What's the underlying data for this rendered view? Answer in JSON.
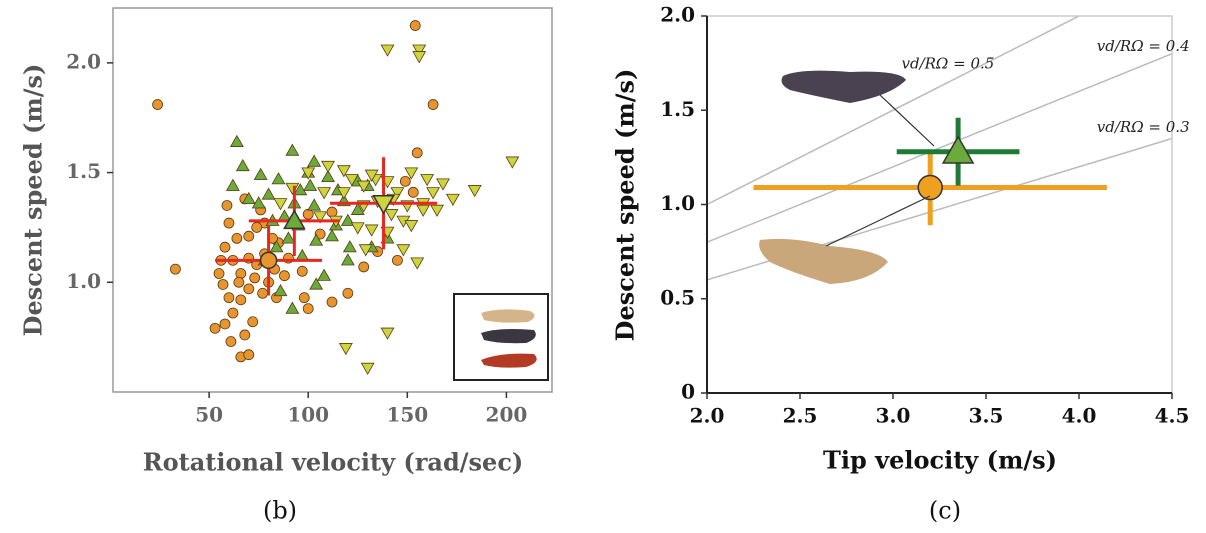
{
  "chart_data": [
    {
      "type": "scatter",
      "subplot_label": "(b)",
      "x_label": "Rotational velocity (rad/sec)",
      "y_label": "Descent speed (m/s)",
      "xlim": [
        1.5,
        223
      ],
      "ylim": [
        0.5,
        2.25
      ],
      "xticks": [
        50,
        100,
        150,
        200
      ],
      "yticks": [
        {
          "value": 1.0,
          "label": "1.0"
        },
        {
          "value": 1.5,
          "label": "1.5"
        },
        {
          "value": 2.0,
          "label": "2.0"
        }
      ],
      "series": [
        {
          "color": "#e8952f",
          "marker": "circle",
          "x": [
            24,
            33,
            154,
            163,
            155,
            149,
            153,
            145,
            128,
            120,
            112,
            100,
            98,
            97,
            88,
            85,
            78,
            74,
            70,
            64,
            59,
            60,
            56,
            55,
            57,
            60,
            62,
            58,
            53,
            61,
            66,
            70,
            68,
            72,
            66,
            70,
            73,
            66,
            62,
            70,
            78,
            74,
            80,
            84,
            90,
            82,
            76,
            68,
            100,
            106,
            135,
            112,
            65,
            77,
            83,
            58
          ],
          "y": [
            1.81,
            1.06,
            2.17,
            1.81,
            1.59,
            1.46,
            1.41,
            1.1,
            1.07,
            0.95,
            0.91,
            0.88,
            0.93,
            1.05,
            1.03,
            1.18,
            1.27,
            1.25,
            1.21,
            1.2,
            1.35,
            1.27,
            1.1,
            1.04,
            0.99,
            0.93,
            0.86,
            0.81,
            0.79,
            0.73,
            0.66,
            0.67,
            0.76,
            0.82,
            0.92,
            0.97,
            1.02,
            1.04,
            1.1,
            1.11,
            1.13,
            1.08,
            1.0,
            0.93,
            1.11,
            1.2,
            1.33,
            1.38,
            1.31,
            1.22,
            1.14,
            1.32,
            1.0,
            0.95,
            1.06,
            1.16
          ]
        },
        {
          "color": "#6aab3c",
          "marker": "triangle-up",
          "x": [
            64,
            92,
            100,
            103,
            115,
            85,
            80,
            75,
            70,
            67,
            62,
            76,
            88,
            95,
            90,
            84,
            97,
            104,
            112,
            120,
            118,
            125,
            130,
            103,
            96,
            82,
            86,
            104,
            108,
            120,
            132,
            140,
            110,
            101,
            93,
            78,
            92,
            121,
            114,
            125
          ],
          "y": [
            1.64,
            1.6,
            1.5,
            1.55,
            1.42,
            1.47,
            1.4,
            1.36,
            1.38,
            1.53,
            1.44,
            1.49,
            1.3,
            1.26,
            1.2,
            1.16,
            1.12,
            1.19,
            1.21,
            1.28,
            1.37,
            1.33,
            1.44,
            1.35,
            1.42,
            1.28,
            0.96,
            0.99,
            1.03,
            1.1,
            1.16,
            1.2,
            1.48,
            1.44,
            1.36,
            1.1,
            0.88,
            1.16,
            1.26,
            1.46
          ]
        },
        {
          "color": "#cdd43c",
          "marker": "triangle-down",
          "x": [
            140,
            156,
            156,
            203,
            184,
            173,
            163,
            165,
            158,
            150,
            145,
            140,
            134,
            128,
            122,
            118,
            128,
            135,
            142,
            148,
            152,
            140,
            132,
            125,
            114,
            106,
            108,
            118,
            110,
            100,
            92,
            86,
            148,
            155,
            140,
            119,
            130,
            143,
            160,
            168,
            152,
            158,
            129,
            132
          ],
          "y": [
            2.06,
            2.06,
            2.03,
            1.55,
            1.42,
            1.38,
            1.41,
            1.33,
            1.36,
            1.35,
            1.41,
            1.46,
            1.47,
            1.44,
            1.47,
            1.41,
            1.35,
            1.37,
            1.31,
            1.28,
            1.26,
            1.23,
            1.24,
            1.25,
            1.28,
            1.3,
            1.41,
            1.51,
            1.53,
            1.5,
            1.43,
            1.36,
            1.15,
            1.09,
            0.77,
            0.7,
            0.61,
            1.38,
            1.47,
            1.45,
            1.5,
            1.33,
            1.15,
            1.49
          ]
        }
      ],
      "means": [
        {
          "x": 80,
          "y": 1.1,
          "xerr": 27,
          "yerr": 0.16,
          "color": "#e8952f",
          "bar_color": "#e8281e",
          "marker": "circle"
        },
        {
          "x": 93,
          "y": 1.28,
          "xerr": 23,
          "yerr": 0.16,
          "color": "#6aab3c",
          "bar_color": "#e8281e",
          "marker": "triangle-up"
        },
        {
          "x": 138,
          "y": 1.36,
          "xerr": 27,
          "yerr": 0.21,
          "color": "#cdd43c",
          "bar_color": "#e8281e",
          "marker": "triangle-down"
        }
      ]
    },
    {
      "type": "scatter",
      "subplot_label": "(c)",
      "x_label": "Tip velocity (m/s)",
      "y_label": "Descent speed (m/s)",
      "xlim": [
        2.0,
        4.5
      ],
      "ylim": [
        0,
        2.0
      ],
      "xticks": [
        {
          "value": 2.0,
          "label": "2.0"
        },
        {
          "value": 2.5,
          "label": "2.5"
        },
        {
          "value": 3.0,
          "label": "3.0"
        },
        {
          "value": 3.5,
          "label": "3.5"
        },
        {
          "value": 4.0,
          "label": "4.0"
        },
        {
          "value": 4.5,
          "label": "4.5"
        }
      ],
      "yticks": [
        0,
        {
          "value": 0.5,
          "label": "0.5"
        },
        {
          "value": 1.0,
          "label": "1.0"
        },
        {
          "value": 1.5,
          "label": "1.5"
        },
        {
          "value": 2.0,
          "label": "2.0"
        }
      ],
      "ratio_lines": [
        {
          "value": 0.5,
          "label": "vd/RΩ = 0.5"
        },
        {
          "value": 0.4,
          "label": "vd/RΩ = 0.4"
        },
        {
          "value": 0.3,
          "label": "vd/RΩ = 0.3"
        }
      ],
      "means": [
        {
          "x": 3.2,
          "y": 1.09,
          "xerr": 0.95,
          "yerr": 0.2,
          "color": "#f0a020",
          "bar_color": "#f0a020",
          "marker": "circle"
        },
        {
          "x": 3.35,
          "y": 1.28,
          "xerr": 0.33,
          "yerr": 0.18,
          "color": "#6aab3c",
          "bar_color": "#1f7a35",
          "marker": "triangle-up"
        }
      ]
    }
  ]
}
